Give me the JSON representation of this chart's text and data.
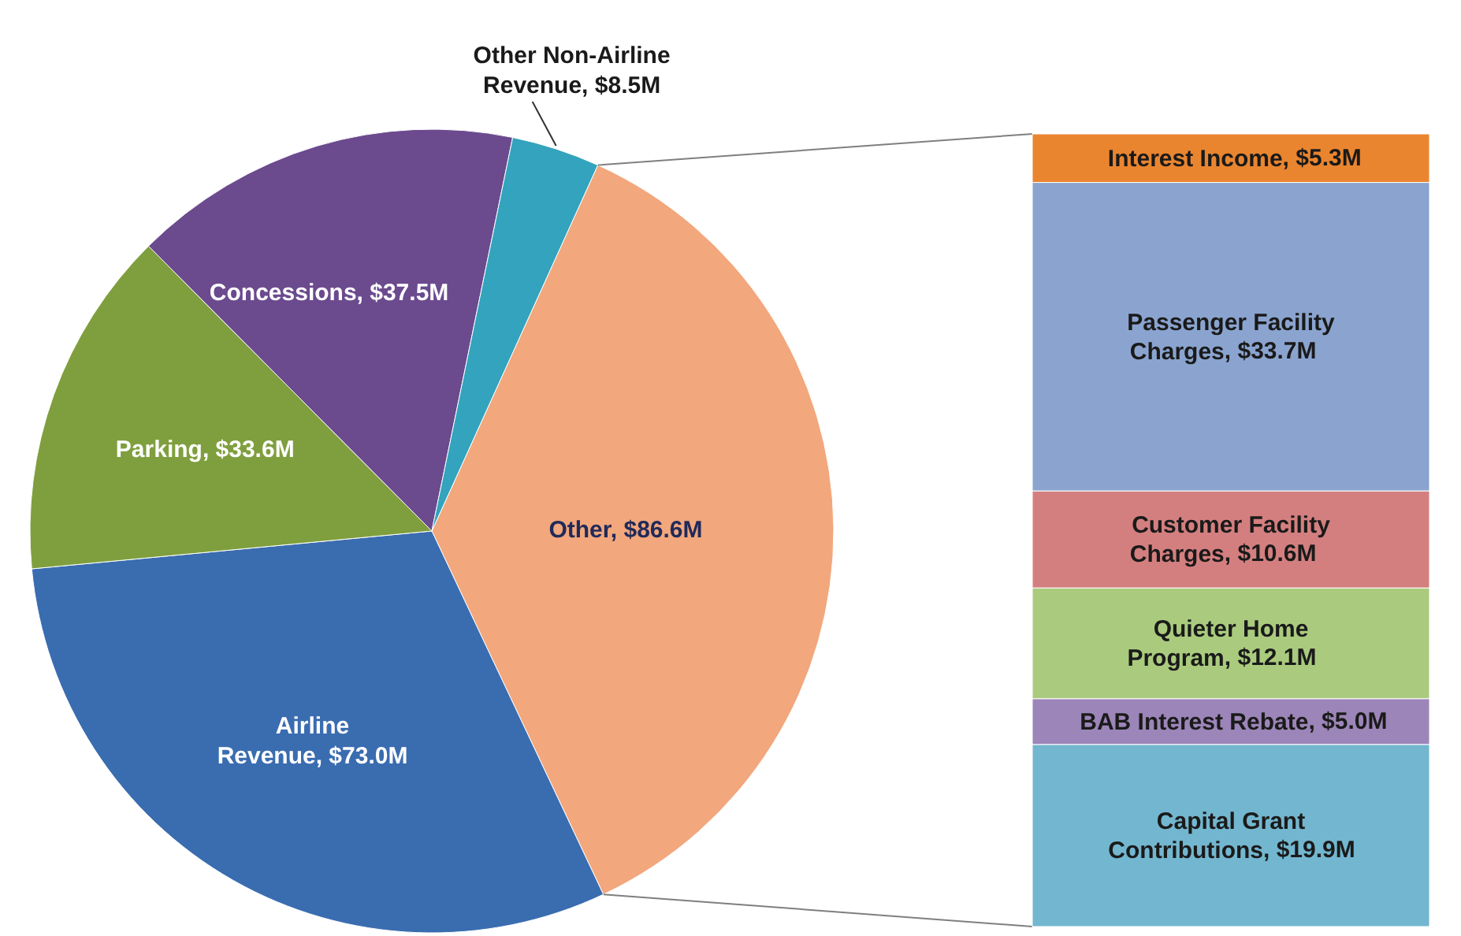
{
  "chart_data": [
    {
      "type": "pie",
      "categories": [
        "Other",
        "Airline Revenue",
        "Parking",
        "Concessions",
        "Other Non-Airline Revenue"
      ],
      "values": [
        86.6,
        73.0,
        33.6,
        37.5,
        8.5
      ],
      "value_labels": [
        "$86.6M",
        "$73.0M",
        "$33.6M",
        "$37.5M",
        "$8.5M"
      ],
      "colors": [
        "#f2a77c",
        "#3a6cb0",
        "#7f9f3e",
        "#6b4a8e",
        "#34a3bd"
      ]
    },
    {
      "type": "bar",
      "stacked": true,
      "categories": [
        null
      ],
      "series": [
        {
          "name": "Capital Grant Contributions",
          "color": "#73b6cf",
          "values": [
            19.9
          ],
          "value_labels": [
            ", $19.9M"
          ]
        },
        {
          "name": "BAB Interest Rebate",
          "color": "#9c85b8",
          "values": [
            5.0
          ],
          "value_labels": [
            ", $5.0M"
          ]
        },
        {
          "name": "Quieter Home Program",
          "color": "#aacb7e",
          "values": [
            12.1
          ],
          "value_labels": [
            ", $12.1M"
          ]
        },
        {
          "name": "Customer Facility Charges",
          "color": "#d47f7f",
          "values": [
            10.6
          ],
          "value_labels": [
            ", $10.6M"
          ]
        },
        {
          "name": "Passenger Facility Charges",
          "color": "#8aa4cf",
          "values": [
            33.7
          ],
          "value_labels": [
            ", $33.7M"
          ]
        },
        {
          "name": "Interest Income",
          "color": "#ea852f",
          "values": [
            5.3
          ],
          "value_labels": [
            ", $5.3M"
          ]
        }
      ]
    }
  ]
}
